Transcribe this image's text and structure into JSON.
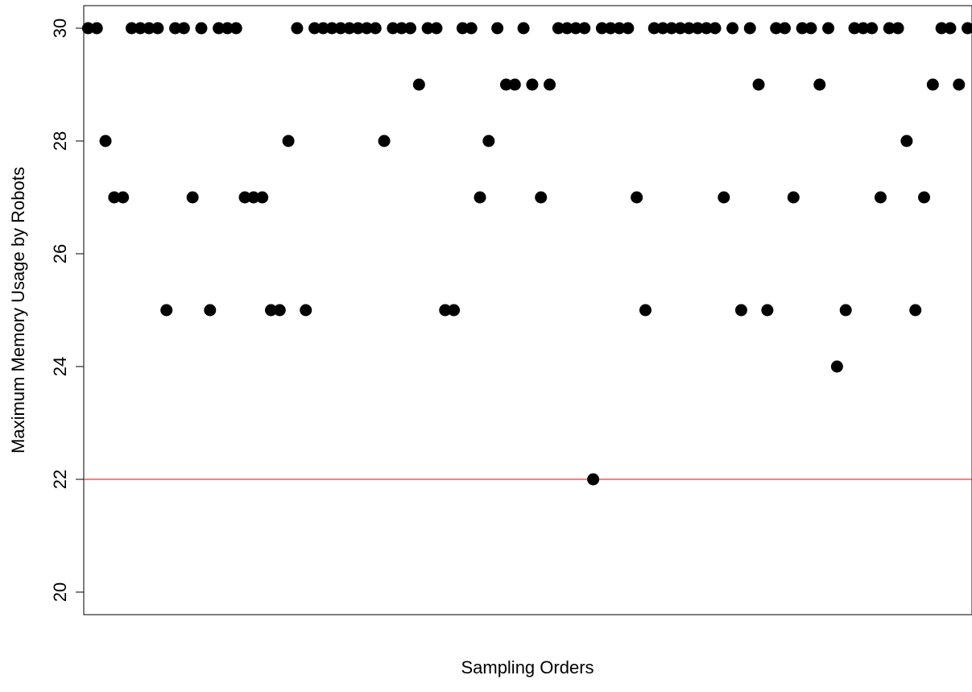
{
  "chart_data": {
    "type": "scatter",
    "title": "",
    "xlabel": "Sampling Orders",
    "ylabel": "Maximum Memory Usage by Robots",
    "xlim": [
      0.5,
      102.5
    ],
    "ylim": [
      19.6,
      30.4
    ],
    "yticks": [
      20,
      22,
      24,
      26,
      28,
      30
    ],
    "x_ticks_shown": false,
    "grid": false,
    "legend": "none",
    "series": [
      {
        "x": [
          1,
          2,
          3,
          4,
          5,
          6,
          7,
          8,
          9,
          10,
          11,
          12,
          13,
          14,
          15,
          16,
          17,
          18,
          19,
          20,
          21,
          22,
          23,
          24,
          25,
          26,
          27,
          28,
          29,
          30,
          31,
          32,
          33,
          34,
          35,
          36,
          37,
          38,
          39,
          40,
          41,
          42,
          43,
          44,
          45,
          46,
          47,
          48,
          49,
          50,
          51,
          52,
          53,
          54,
          55,
          56,
          57,
          58,
          59,
          60,
          61,
          62,
          63,
          64,
          65,
          66,
          67,
          68,
          69,
          70,
          71,
          72,
          73,
          74,
          75,
          76,
          77,
          78,
          79,
          80,
          81,
          82,
          83,
          84,
          85,
          86,
          87,
          88,
          89,
          90,
          91,
          92,
          93,
          94,
          95,
          96,
          97,
          98,
          99,
          100,
          101,
          102
        ],
        "y": [
          30,
          30,
          28,
          27,
          27,
          30,
          30,
          30,
          30,
          25,
          30,
          30,
          27,
          30,
          25,
          30,
          30,
          30,
          27,
          27,
          27,
          25,
          25,
          28,
          30,
          25,
          30,
          30,
          30,
          30,
          30,
          30,
          30,
          30,
          28,
          30,
          30,
          30,
          29,
          30,
          30,
          25,
          25,
          30,
          30,
          27,
          28,
          30,
          29,
          29,
          30,
          29,
          27,
          29,
          30,
          30,
          30,
          30,
          22,
          30,
          30,
          30,
          30,
          27,
          25,
          30,
          30,
          30,
          30,
          30,
          30,
          30,
          30,
          27,
          30,
          25,
          30,
          29,
          25,
          30,
          30,
          27,
          30,
          30,
          29,
          30,
          24,
          25,
          30,
          30,
          30,
          27,
          30,
          30,
          28,
          25,
          27,
          29,
          30,
          30,
          29,
          30
        ],
        "color": "#000000",
        "marker": "filled-circle"
      }
    ],
    "reference_lines": [
      {
        "axis": "y",
        "value": 22,
        "color": "#ff0000"
      }
    ]
  }
}
